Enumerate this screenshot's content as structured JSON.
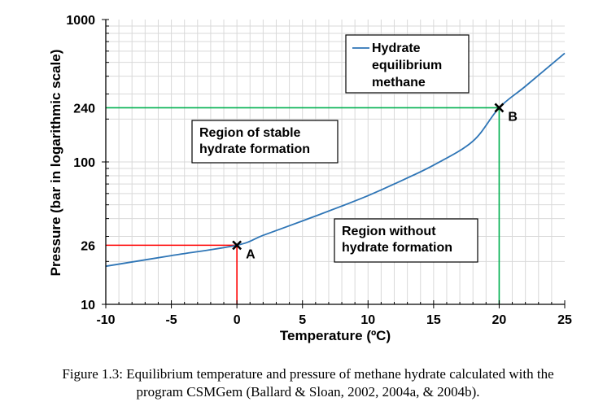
{
  "chart_data": {
    "type": "line",
    "xlabel": "Temperature (ºC)",
    "ylabel": "Pressure (bar in logarithmic scale)",
    "x_scale": "linear",
    "y_scale": "log",
    "xlim": [
      -10,
      25
    ],
    "ylim": [
      10,
      1000
    ],
    "x_ticks": [
      -10,
      -5,
      0,
      5,
      10,
      15,
      20,
      25
    ],
    "y_ticks": [
      10,
      26,
      100,
      240,
      1000
    ],
    "grid": true,
    "legend_position": "top-right",
    "series": [
      {
        "name": "Hydrate equilibrium methane",
        "color": "#2e75b6",
        "x": [
          -10,
          -5,
          0,
          2,
          5,
          8,
          10,
          12,
          15,
          18,
          20,
          22,
          25
        ],
        "y": [
          18.5,
          22,
          26,
          30.5,
          38.5,
          49,
          58,
          70,
          95,
          140,
          240,
          340,
          580
        ]
      }
    ],
    "reference_lines": [
      {
        "color": "#ff0000",
        "x": 0,
        "y": 26
      },
      {
        "color": "#00b050",
        "x": 20,
        "y": 240
      }
    ],
    "markers": [
      {
        "label": "A",
        "x": 0,
        "y": 26
      },
      {
        "label": "B",
        "x": 20,
        "y": 240
      }
    ],
    "annotations": [
      {
        "lines": [
          "Region of stable",
          "hydrate formation"
        ]
      },
      {
        "lines": [
          "Region without",
          "hydrate formation"
        ]
      }
    ],
    "legend_lines": [
      "Hydrate",
      "equilibrium",
      "methane"
    ]
  },
  "caption": {
    "line1": "Figure 1.3: Equilibrium temperature and pressure of methane hydrate calculated with the",
    "line2": "program CSMGem (Ballard & Sloan, 2002, 2004a, & 2004b)."
  }
}
